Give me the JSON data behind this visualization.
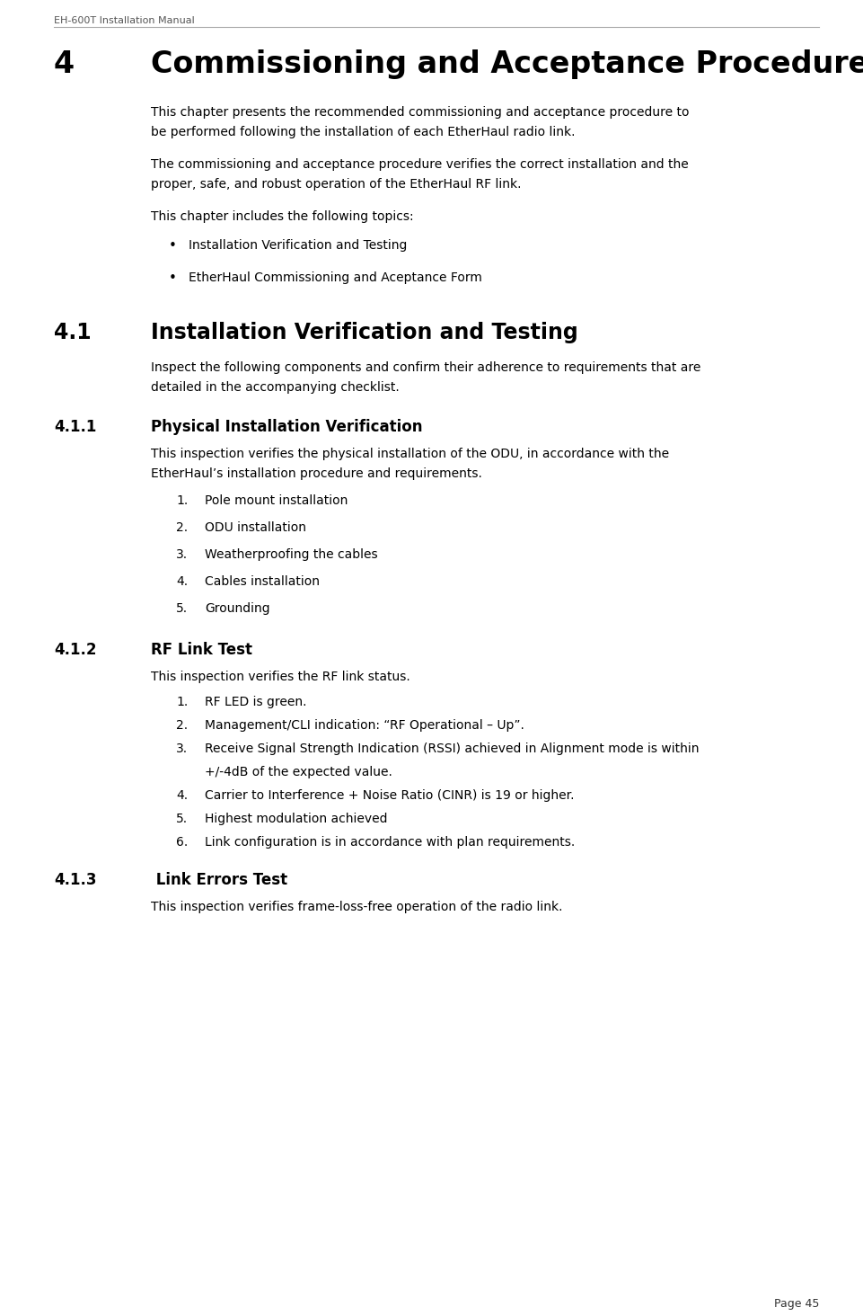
{
  "header": "EH-600T Installation Manual",
  "page_number": "Page 45",
  "chapter_number": "4",
  "chapter_title": "Commissioning and Acceptance Procedure",
  "p1_line1": "This chapter presents the recommended commissioning and acceptance procedure to",
  "p1_line2": "be performed following the installation of each EtherHaul radio link.",
  "p2_line1": "The commissioning and acceptance procedure verifies the correct installation and the",
  "p2_line2": "proper, safe, and robust operation of the EtherHaul RF link.",
  "p3": "This chapter includes the following topics:",
  "bullet_items": [
    "Installation Verification and Testing",
    "EtherHaul Commissioning and Aceptance Form"
  ],
  "section_41_number": "4.1",
  "section_41_title": "Installation Verification and Testing",
  "section_41_body_line1": "Inspect the following components and confirm their adherence to requirements that are",
  "section_41_body_line2": "detailed in the accompanying checklist.",
  "section_411_number": "4.1.1",
  "section_411_title": "Physical Installation Verification",
  "section_411_body_line1": "This inspection verifies the physical installation of the ODU, in accordance with the",
  "section_411_body_line2": "EtherHaul’s installation procedure and requirements.",
  "section_411_items": [
    "Pole mount installation",
    "ODU installation",
    "Weatherproofing the cables",
    "Cables installation",
    "Grounding"
  ],
  "section_412_number": "4.1.2",
  "section_412_title": "RF Link Test",
  "section_412_body": "This inspection verifies the RF link status.",
  "section_412_items": [
    "RF LED is green.",
    "Management/CLI indication: “RF Operational – Up”.",
    "Receive Signal Strength Indication (RSSI) achieved in Alignment mode is within",
    "+/-4dB of the expected value.",
    "Carrier to Interference + Noise Ratio (CINR) is 19 or higher.",
    "Highest modulation achieved",
    "Link configuration is in accordance with plan requirements."
  ],
  "section_413_number": "4.1.3",
  "section_413_title": " Link Errors Test",
  "section_413_body": "This inspection verifies frame-loss-free operation of the radio link.",
  "bg_color": "#ffffff",
  "text_color": "#000000",
  "header_color": "#555555"
}
